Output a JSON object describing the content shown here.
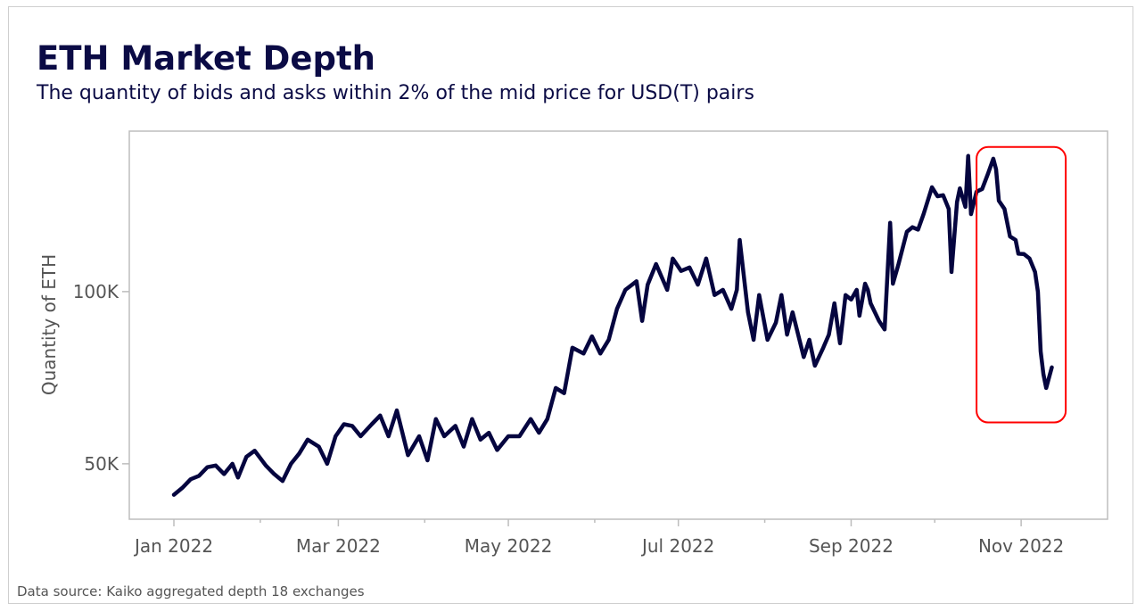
{
  "chart_data": {
    "type": "line",
    "title": "ETH Market Depth",
    "subtitle": "The quantity of bids and asks within 2% of the mid price for USD(T) pairs",
    "xlabel": "",
    "ylabel": "Quantity of ETH",
    "x_units": "days since 2022-01-01",
    "xlim": [
      -16,
      335
    ],
    "ylim": [
      33.9,
      146.6
    ],
    "y_units": "thousand ETH",
    "grid": false,
    "x_ticks": [
      {
        "day": 0,
        "label": "Jan 2022"
      },
      {
        "day": 59,
        "label": "Mar 2022"
      },
      {
        "day": 120,
        "label": "May 2022"
      },
      {
        "day": 181,
        "label": "Jul 2022"
      },
      {
        "day": 243,
        "label": "Sep 2022"
      },
      {
        "day": 304,
        "label": "Nov 2022"
      }
    ],
    "x_minor_ticks": [
      31,
      90,
      151,
      212,
      273
    ],
    "y_ticks": [
      {
        "value": 50,
        "label": "50K"
      },
      {
        "value": 100,
        "label": "100K"
      }
    ],
    "series": [
      {
        "name": "ETH depth",
        "color": "#05053f",
        "points": [
          [
            0,
            41
          ],
          [
            3,
            43
          ],
          [
            6,
            45.5
          ],
          [
            9,
            46.5
          ],
          [
            12,
            49
          ],
          [
            15,
            49.5
          ],
          [
            18,
            47
          ],
          [
            21,
            50
          ],
          [
            23,
            46
          ],
          [
            26,
            52
          ],
          [
            29,
            53.8
          ],
          [
            33,
            49.5
          ],
          [
            36,
            47
          ],
          [
            39,
            45
          ],
          [
            42,
            50
          ],
          [
            45,
            53
          ],
          [
            48,
            57
          ],
          [
            52,
            55
          ],
          [
            55,
            50
          ],
          [
            58,
            58
          ],
          [
            61,
            61.5
          ],
          [
            64,
            61
          ],
          [
            67,
            58
          ],
          [
            71,
            61.5
          ],
          [
            74,
            64
          ],
          [
            77,
            58
          ],
          [
            80,
            65.5
          ],
          [
            84,
            52.5
          ],
          [
            88,
            58
          ],
          [
            91,
            51
          ],
          [
            94,
            63
          ],
          [
            97,
            58
          ],
          [
            101,
            61
          ],
          [
            104,
            55
          ],
          [
            107,
            63
          ],
          [
            110,
            57
          ],
          [
            113,
            59
          ],
          [
            116,
            54
          ],
          [
            120,
            58
          ],
          [
            124,
            58
          ],
          [
            128,
            63
          ],
          [
            131,
            59
          ],
          [
            134,
            63
          ],
          [
            137,
            72
          ],
          [
            140,
            70.5
          ],
          [
            143,
            83.7
          ],
          [
            147,
            82
          ],
          [
            150,
            87
          ],
          [
            153,
            82
          ],
          [
            156,
            86
          ],
          [
            159,
            95
          ],
          [
            162,
            100.5
          ],
          [
            166,
            103
          ],
          [
            168,
            91.5
          ],
          [
            170,
            102
          ],
          [
            173,
            108
          ],
          [
            177,
            100.5
          ],
          [
            179,
            109.6
          ],
          [
            182,
            106
          ],
          [
            185,
            107
          ],
          [
            188,
            102
          ],
          [
            191,
            109.6
          ],
          [
            194,
            99
          ],
          [
            197,
            100.5
          ],
          [
            200,
            95
          ],
          [
            202,
            100.5
          ],
          [
            203,
            115
          ],
          [
            206,
            94
          ],
          [
            208,
            86
          ],
          [
            210,
            99
          ],
          [
            213,
            86
          ],
          [
            216,
            91
          ],
          [
            218,
            99
          ],
          [
            220,
            87.5
          ],
          [
            222,
            94
          ],
          [
            226,
            81
          ],
          [
            228,
            86
          ],
          [
            230,
            78.5
          ],
          [
            233,
            83.7
          ],
          [
            235,
            87.5
          ],
          [
            237,
            96.6
          ],
          [
            239,
            85
          ],
          [
            241,
            99
          ],
          [
            243,
            97.7
          ],
          [
            245,
            100.5
          ],
          [
            246,
            93
          ],
          [
            248,
            102.3
          ],
          [
            249,
            100.5
          ],
          [
            250,
            96.6
          ],
          [
            253,
            91.5
          ],
          [
            255,
            89
          ],
          [
            257,
            120
          ],
          [
            258,
            102.3
          ],
          [
            260,
            108
          ],
          [
            263,
            117.4
          ],
          [
            265,
            118.7
          ],
          [
            267,
            118
          ],
          [
            269,
            122.5
          ],
          [
            272,
            130.3
          ],
          [
            274,
            127.7
          ],
          [
            276,
            128
          ],
          [
            278,
            124
          ],
          [
            279,
            105.7
          ],
          [
            281,
            126
          ],
          [
            282,
            130
          ],
          [
            284,
            124.6
          ],
          [
            285,
            139.4
          ],
          [
            286,
            122.5
          ],
          [
            288,
            129
          ],
          [
            290,
            129.8
          ],
          [
            292,
            134
          ],
          [
            294,
            138.6
          ],
          [
            295,
            135.5
          ],
          [
            296,
            126.4
          ],
          [
            298,
            124
          ],
          [
            300,
            116
          ],
          [
            302,
            115
          ],
          [
            303,
            111
          ],
          [
            305,
            110.9
          ],
          [
            307,
            109.6
          ],
          [
            309,
            105.7
          ],
          [
            310,
            100
          ],
          [
            311,
            82.6
          ],
          [
            312,
            76
          ],
          [
            313,
            72
          ],
          [
            315,
            78
          ]
        ]
      }
    ],
    "annotations": [
      {
        "type": "highlight-box",
        "color": "#ff0000",
        "x_range": [
          288,
          320
        ],
        "y_range": [
          62,
          142
        ]
      }
    ],
    "source": "Data source: Kaiko aggregated depth 18 exchanges"
  }
}
